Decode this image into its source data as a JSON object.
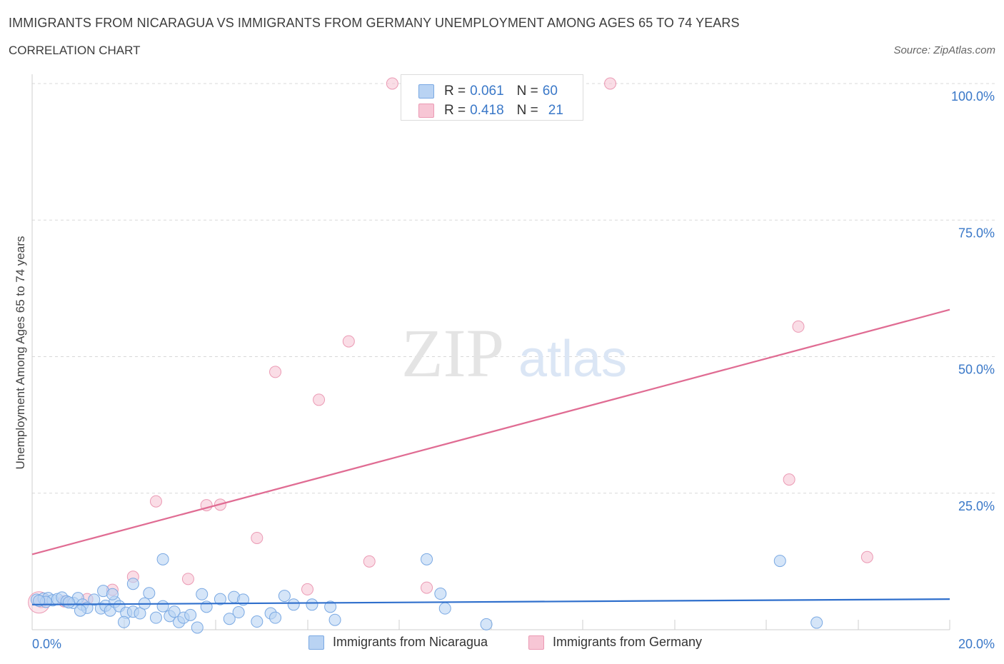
{
  "header": {
    "title": "IMMIGRANTS FROM NICARAGUA VS IMMIGRANTS FROM GERMANY UNEMPLOYMENT AMONG AGES 65 TO 74 YEARS",
    "subtitle": "CORRELATION CHART",
    "source": "Source: ZipAtlas.com"
  },
  "legend": {
    "rows": [
      {
        "r_label": "R = ",
        "r_value": "0.061",
        "n_label": "N = ",
        "n_value": "60"
      },
      {
        "r_label": "R = ",
        "r_value": "0.418",
        "n_label": "N = ",
        "n_value": "21"
      }
    ]
  },
  "bottom_legend": {
    "series1": "Immigrants from Nicaragua",
    "series2": "Immigrants from Germany"
  },
  "colors": {
    "series1_fill": "#b9d3f3",
    "series1_stroke": "#7aa9e3",
    "series1_line": "#2f6fcc",
    "series2_fill": "#f7c6d5",
    "series2_stroke": "#eb9ab4",
    "series2_line": "#e06c93",
    "axis_label": "#3a78c8",
    "grid": "#d8d8d8"
  },
  "chart_data": {
    "type": "scatter",
    "title": "IMMIGRANTS FROM NICARAGUA VS IMMIGRANTS FROM GERMANY UNEMPLOYMENT AMONG AGES 65 TO 74 YEARS",
    "xlabel": "",
    "ylabel": "Unemployment Among Ages 65 to 74 years",
    "xlim": [
      0,
      20
    ],
    "ylim": [
      0,
      100
    ],
    "x_tick_labels": [
      "0.0%",
      "20.0%"
    ],
    "y_ticks": [
      25,
      50,
      75,
      100
    ],
    "y_tick_labels": [
      "25.0%",
      "50.0%",
      "75.0%",
      "100.0%"
    ],
    "watermark": {
      "left": "ZIP",
      "right": "atlas"
    },
    "series": [
      {
        "name": "Immigrants from Nicaragua",
        "R": 0.061,
        "N": 60,
        "trend": {
          "x": [
            0,
            20
          ],
          "y": [
            4.6,
            5.6
          ]
        },
        "points": [
          [
            0.1,
            5.5
          ],
          [
            0.25,
            5.7
          ],
          [
            0.35,
            5.8
          ],
          [
            0.45,
            5.4
          ],
          [
            0.55,
            5.6
          ],
          [
            0.65,
            5.9
          ],
          [
            0.75,
            5.2
          ],
          [
            0.9,
            4.9
          ],
          [
            1.0,
            5.8
          ],
          [
            1.1,
            4.6
          ],
          [
            1.2,
            4.0
          ],
          [
            1.35,
            5.5
          ],
          [
            1.5,
            3.9
          ],
          [
            1.6,
            4.4
          ],
          [
            1.7,
            3.5
          ],
          [
            1.8,
            5.1
          ],
          [
            1.9,
            4.3
          ],
          [
            2.05,
            3.1
          ],
          [
            2.2,
            3.3
          ],
          [
            2.35,
            3.0
          ],
          [
            2.45,
            4.8
          ],
          [
            2.55,
            6.7
          ],
          [
            2.7,
            2.2
          ],
          [
            2.85,
            4.3
          ],
          [
            3.0,
            2.5
          ],
          [
            3.1,
            3.3
          ],
          [
            3.2,
            1.4
          ],
          [
            3.3,
            2.2
          ],
          [
            3.45,
            2.7
          ],
          [
            3.6,
            0.4
          ],
          [
            3.8,
            4.2
          ],
          [
            4.1,
            5.6
          ],
          [
            4.4,
            6.0
          ],
          [
            4.6,
            5.5
          ],
          [
            4.5,
            3.2
          ],
          [
            4.3,
            2.0
          ],
          [
            4.9,
            1.5
          ],
          [
            5.2,
            3.0
          ],
          [
            5.5,
            6.2
          ],
          [
            5.7,
            4.6
          ],
          [
            5.3,
            2.2
          ],
          [
            6.1,
            4.6
          ],
          [
            6.5,
            4.2
          ],
          [
            6.6,
            1.8
          ],
          [
            1.55,
            7.1
          ],
          [
            1.75,
            6.5
          ],
          [
            2.2,
            8.4
          ],
          [
            2.85,
            12.9
          ],
          [
            3.7,
            6.5
          ],
          [
            0.8,
            5.0
          ],
          [
            0.3,
            5.1
          ],
          [
            0.15,
            5.3
          ],
          [
            8.6,
            12.9
          ],
          [
            8.9,
            6.6
          ],
          [
            9.0,
            3.9
          ],
          [
            9.9,
            1.0
          ],
          [
            16.3,
            12.6
          ],
          [
            17.1,
            1.3
          ],
          [
            2.0,
            1.4
          ],
          [
            1.05,
            3.5
          ]
        ]
      },
      {
        "name": "Immigrants from Germany",
        "R": 0.418,
        "N": 21,
        "trend": {
          "x": [
            0,
            20
          ],
          "y": [
            13.8,
            58.6
          ]
        },
        "points": [
          [
            0.2,
            5.1
          ],
          [
            0.7,
            5.2
          ],
          [
            1.2,
            5.6
          ],
          [
            1.75,
            7.3
          ],
          [
            2.2,
            9.7
          ],
          [
            2.7,
            23.5
          ],
          [
            3.4,
            9.3
          ],
          [
            3.8,
            22.8
          ],
          [
            4.1,
            22.9
          ],
          [
            4.9,
            16.8
          ],
          [
            5.3,
            47.2
          ],
          [
            6.0,
            7.4
          ],
          [
            6.25,
            42.1
          ],
          [
            6.9,
            52.8
          ],
          [
            7.35,
            12.5
          ],
          [
            7.85,
            100.0
          ],
          [
            8.6,
            7.7
          ],
          [
            12.6,
            100.0
          ],
          [
            16.7,
            55.5
          ],
          [
            16.5,
            27.5
          ],
          [
            18.2,
            13.3
          ]
        ]
      }
    ]
  }
}
